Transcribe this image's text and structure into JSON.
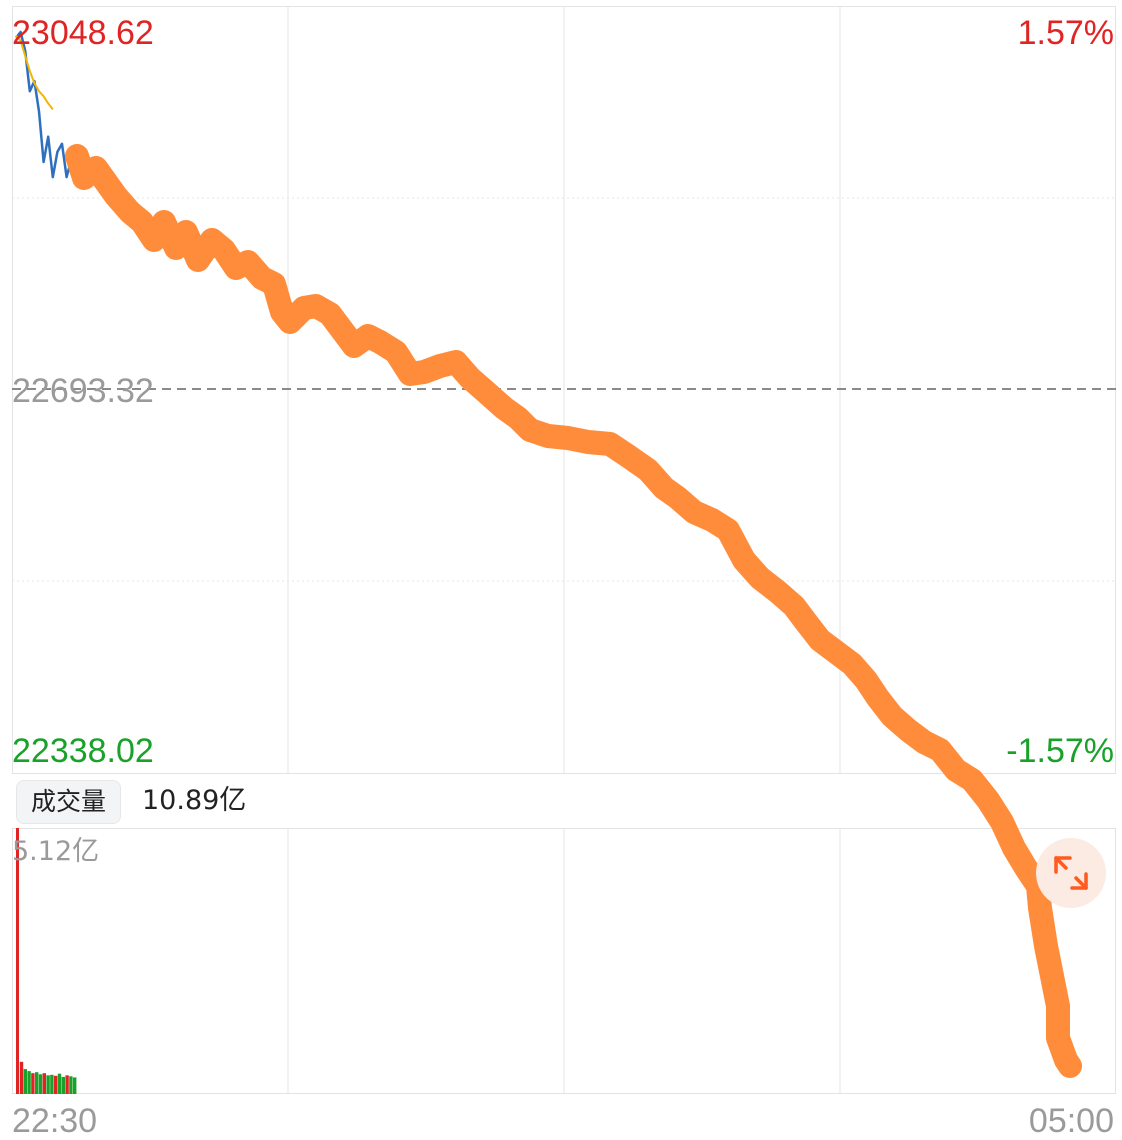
{
  "price_axis": {
    "high": "23048.62",
    "prev_close": "22693.32",
    "low": "22338.02",
    "pct_high": "1.57%",
    "pct_low": "-1.57%"
  },
  "volume": {
    "badge_label": "成交量",
    "total": "10.89亿",
    "max_label": "5.12亿"
  },
  "time_axis": {
    "start": "22:30",
    "end": "05:00"
  },
  "colors": {
    "up": "#e02424",
    "down": "#19a12a",
    "price_line": "#2f6fc0",
    "avg_line": "#f2b705",
    "overlay_stroke": "#ff8c3a",
    "grid": "#e6e6e6"
  },
  "icons": {
    "fullscreen": "expand-arrows-icon"
  },
  "chart_data": {
    "type": "line",
    "title": "",
    "ylim": [
      22338.02,
      23048.62
    ],
    "prev_close": 22693.32,
    "x_range": [
      "22:30",
      "05:00"
    ],
    "series": [
      {
        "values": [
          23043,
          23048.6,
          23030,
          22990,
          23000,
          22970,
          22920,
          22945,
          22905,
          22930,
          22938,
          22905,
          22922
        ]
      },
      {
        "values": [
          23045,
          23040,
          23025,
          23010,
          22998,
          22990,
          22985,
          22978,
          22972
        ]
      }
    ],
    "volume_max": 5.12,
    "volume_unit": "亿",
    "volume_values": [
      5.12,
      0.62,
      0.48,
      0.44,
      0.4,
      0.42,
      0.38,
      0.4,
      0.36,
      0.37,
      0.35,
      0.39,
      0.33,
      0.36,
      0.34,
      0.32
    ]
  }
}
